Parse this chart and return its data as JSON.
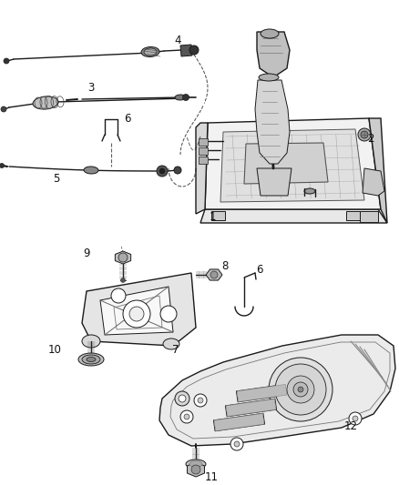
{
  "background_color": "#ffffff",
  "line_color": "#1a1a1a",
  "label_color": "#111111",
  "label_fontsize": 8.5,
  "fig_width": 4.38,
  "fig_height": 5.33,
  "dpi": 100
}
